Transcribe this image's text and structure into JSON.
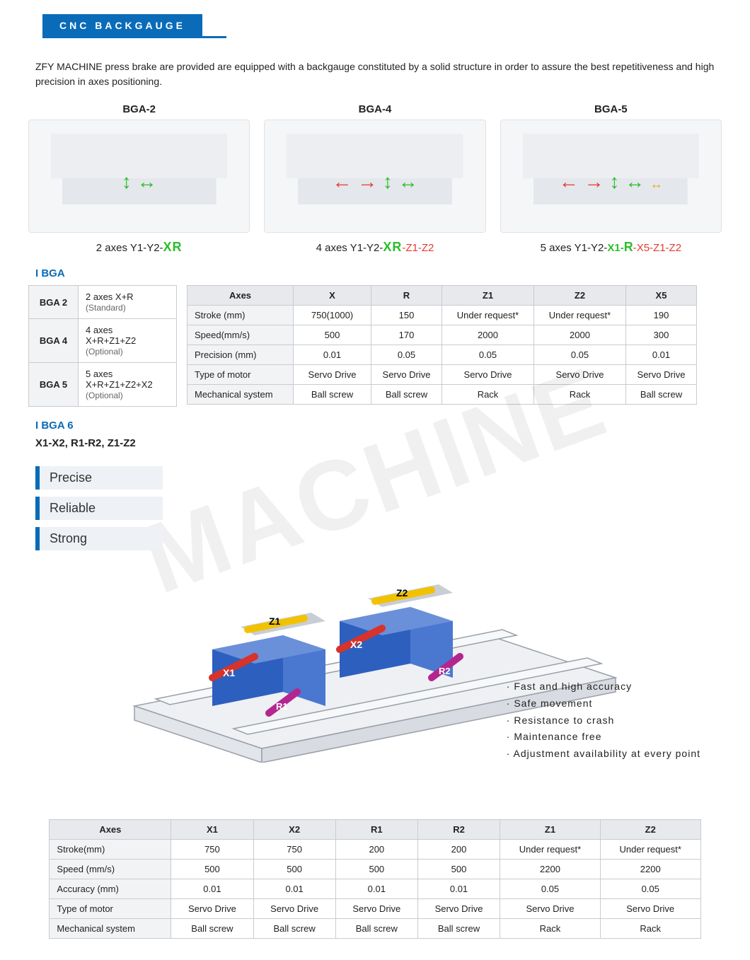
{
  "header": {
    "title": "CNC BACKGAUGE"
  },
  "intro": "ZFY MACHINE press brake are provided are equipped with a backgauge constituted by a solid structure in order to assure the best repetitiveness and high precision in axes positioning.",
  "panels": [
    {
      "title": "BGA-2",
      "label_prefix": "2 axes Y1-Y2-",
      "xr": "XR",
      "z": ""
    },
    {
      "title": "BGA-4",
      "label_prefix": "4 axes Y1-Y2-",
      "xr": "XR",
      "z": "-Z1-Z2"
    },
    {
      "title": "BGA-5",
      "label_prefix": "5 axes Y1-Y2-",
      "x1": "X1-",
      "r": "R",
      "x5z": "-X5-Z1-Z2"
    }
  ],
  "section_bga": "I BGA",
  "config": {
    "rows": [
      {
        "name": "BGA 2",
        "desc": "2 axes X+R",
        "note": "(Standard)"
      },
      {
        "name": "BGA 4",
        "desc": "4 axes\nX+R+Z1+Z2",
        "note": "(Optional)"
      },
      {
        "name": "BGA 5",
        "desc": "5 axes\nX+R+Z1+Z2+X2",
        "note": "(Optional)"
      }
    ]
  },
  "table1": {
    "headers": [
      "Axes",
      "X",
      "R",
      "Z1",
      "Z2",
      "X5"
    ],
    "rows": [
      [
        "Stroke (mm)",
        "750(1000)",
        "150",
        "Under request*",
        "Under request*",
        "190"
      ],
      [
        "Speed(mm/s)",
        "500",
        "170",
        "2000",
        "2000",
        "300"
      ],
      [
        "Precision (mm)",
        "0.01",
        "0.05",
        "0.05",
        "0.05",
        "0.01"
      ],
      [
        "Type of motor",
        "Servo Drive",
        "Servo Drive",
        "Servo Drive",
        "Servo Drive",
        "Servo Drive"
      ],
      [
        "Mechanical system",
        "Ball screw",
        "Ball screw",
        "Rack",
        "Rack",
        "Ball screw"
      ]
    ],
    "col_widths": [
      "150px",
      "110px",
      "100px",
      "130px",
      "130px",
      "100px"
    ]
  },
  "section_bga6": "I BGA 6",
  "bga6_sub": "X1-X2, R1-R2, Z1-Z2",
  "tags": [
    "Precise",
    "Reliable",
    "Strong"
  ],
  "bga6_labels": {
    "x1": "X1",
    "x2": "X2",
    "r1": "R1",
    "r2": "R2",
    "z1": "Z1",
    "z2": "Z2",
    "colors": {
      "x": "#d8322a",
      "r": "#b4258f",
      "z": "#f2c200",
      "block": "#2d5fbf"
    }
  },
  "bullets": [
    "Fast and high accuracy",
    "Safe movement",
    "Resistance to crash",
    "Maintenance free",
    "Adjustment availability at every point"
  ],
  "table2": {
    "headers": [
      "Axes",
      "X1",
      "X2",
      "R1",
      "R2",
      "Z1",
      "Z2"
    ],
    "rows": [
      [
        "Stroke(mm)",
        "750",
        "750",
        "200",
        "200",
        "Under request*",
        "Under request*"
      ],
      [
        "Speed (mm/s)",
        "500",
        "500",
        "500",
        "500",
        "2200",
        "2200"
      ],
      [
        "Accuracy (mm)",
        "0.01",
        "0.01",
        "0.01",
        "0.01",
        "0.05",
        "0.05"
      ],
      [
        "Type of motor",
        "Servo Drive",
        "Servo Drive",
        "Servo Drive",
        "Servo Drive",
        "Servo Drive",
        "Servo Drive"
      ],
      [
        "Mechanical system",
        "Ball screw",
        "Ball screw",
        "Ball screw",
        "Ball screw",
        "Rack",
        "Rack"
      ]
    ]
  },
  "colors": {
    "brand": "#0a6bb8",
    "green": "#2bbf2b",
    "red": "#e43b2f",
    "border": "#c8cbd0",
    "th_bg": "#e7e9ed"
  }
}
